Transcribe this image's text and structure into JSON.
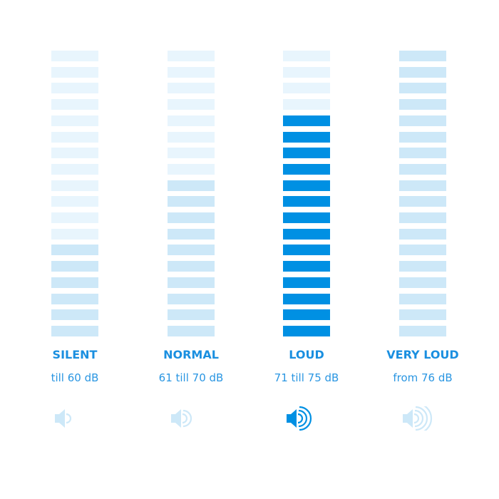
{
  "segments_total": 18,
  "colors": {
    "inactive": "#e8f5fd",
    "level": "#cde8f8",
    "active": "#0090e3",
    "title": "#1a8fe0",
    "subtitle": "#2a96e2"
  },
  "columns": [
    {
      "title": "SILENT",
      "range": "till 60 dB",
      "filled_segments": 6,
      "active": false,
      "sound_waves": 1,
      "icon": "speaker-icon"
    },
    {
      "title": "NORMAL",
      "range": "61 till 70 dB",
      "filled_segments": 10,
      "active": false,
      "sound_waves": 2,
      "icon": "speaker-icon"
    },
    {
      "title": "LOUD",
      "range": "71 till 75 dB",
      "filled_segments": 14,
      "active": true,
      "sound_waves": 3,
      "icon": "speaker-icon"
    },
    {
      "title": "VERY LOUD",
      "range": "from 76 dB",
      "filled_segments": 18,
      "active": false,
      "sound_waves": 4,
      "icon": "speaker-icon"
    }
  ]
}
